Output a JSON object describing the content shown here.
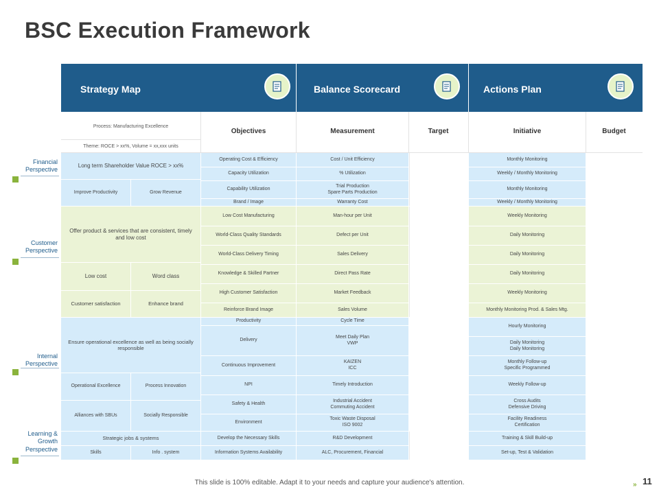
{
  "title": "BSC Execution Framework",
  "header": {
    "strategy_map": "Strategy Map",
    "balance_scorecard": "Balance Scorecard",
    "actions_plan": "Actions Plan"
  },
  "columns": {
    "objectives": "Objectives",
    "measurement": "Measurement",
    "target": "Target",
    "initiative": "Initiative",
    "budget": "Budget"
  },
  "strategy_top": {
    "process": "Process: Manufacturing Excellence",
    "theme": "Theme: ROCE > xx%, Volume = xx,xxx units"
  },
  "perspectives": {
    "financial": "Financial Perspective",
    "customer": "Customer Perspective",
    "internal": "Internal Perspective",
    "learning": "Learning & Growth Perspective"
  },
  "strategy": {
    "fin_long": "Long term Shareholder Value ROCE > xx%",
    "fin_prod": "Improve Productivity",
    "fin_rev": "Grow Revenue",
    "cus_offer": "Offer product & services that are consistent, timely and low cost",
    "cus_low": "Low cost",
    "cus_world": "Word class",
    "cus_sat": "Customer satisfaction",
    "cus_brand": "Enhance brand",
    "int_ensure": "Ensure operational excellence as well as  being socially responsible",
    "int_opex": "Operational Excellence",
    "int_proc": "Process Innovation",
    "int_alliance": "Alliances with SBUs",
    "int_social": "Socially Responsible",
    "lg_jobs": "Strategic  jobs & systems",
    "lg_skills": "Skills",
    "lg_info": "Info . system"
  },
  "rows": [
    {
      "obj": "Operating Cost & Efficiency",
      "meas": "Cost / Unit Efficiency",
      "init": "Monthly Monitoring"
    },
    {
      "obj": "Capacity Utilization",
      "meas": "% Utilization",
      "init": "Weekly / Monthly Monitoring"
    },
    {
      "obj": "Capability Utilization",
      "meas": "Trial Production\nSpare Parts Production",
      "init": "Monthly Monitoring"
    },
    {
      "obj": "Brand / Image",
      "meas": "Warranty Cost",
      "init": "Weekly / Monthly Monitoring"
    },
    {
      "obj": "Low Cost Manufacturing",
      "meas": "Man-hour per Unit",
      "init": "Weekly Monitoring"
    },
    {
      "obj": "World-Class Quality Standards",
      "meas": "Defect per Unit",
      "init": "Daily Monitoring"
    },
    {
      "obj": "World-Class Delivery Timing",
      "meas": "Sales Delivery",
      "init": "Daily Monitoring"
    },
    {
      "obj": "Knowledge & Skilled Partner",
      "meas": "Direct Pass Rate",
      "init": "Daily Monitoring"
    },
    {
      "obj": "High Customer Satisfaction",
      "meas": "Market Feedback",
      "init": "Weekly Monitoring"
    },
    {
      "obj": "Reinforce Brand Image",
      "meas": "Sales Volume",
      "init": "Monthly Monitoring Prod. & Sales Mtg."
    },
    {
      "obj": "Productivity",
      "meas": "Cycle Time",
      "init": "Hourly Monitoring"
    },
    {
      "obj": "Delivery",
      "meas": "Meet Daily Plan\nVWP",
      "init": "Daily Monitoring\nDaily Monitoring"
    },
    {
      "obj": "Continuous Improvement",
      "meas": "KAIZEN\nICC",
      "init": "Monthly Follow-up\nSpecific Programmed"
    },
    {
      "obj": "NPI",
      "meas": "Timely Introduction",
      "init": "Weekly Follow-up"
    },
    {
      "obj": "Safety & Health",
      "meas": "Industrial Accident\nCommuting Accident",
      "init": "Cross Audits\nDefensive Driving"
    },
    {
      "obj": "Environment",
      "meas": "Toxic Waste Disposal\nISO 9002",
      "init": "Facility Readiness\nCertification"
    },
    {
      "obj": "Develop the Necessary Skills",
      "meas": "R&D Development",
      "init": "Training & Skill Build-up"
    },
    {
      "obj": "Information Systems Availability",
      "meas": "ALC, Procurement, Financial",
      "init": "Set-up, Test & Validation"
    }
  ],
  "footer": "This slide is 100% editable. Adapt it to your needs and capture your audience's attention.",
  "page_number": "11",
  "colors": {
    "header": "#1f5c8b",
    "blue_fill": "#d5ebfa",
    "green_fill": "#ebf3d6",
    "accent": "#8ab33c"
  }
}
